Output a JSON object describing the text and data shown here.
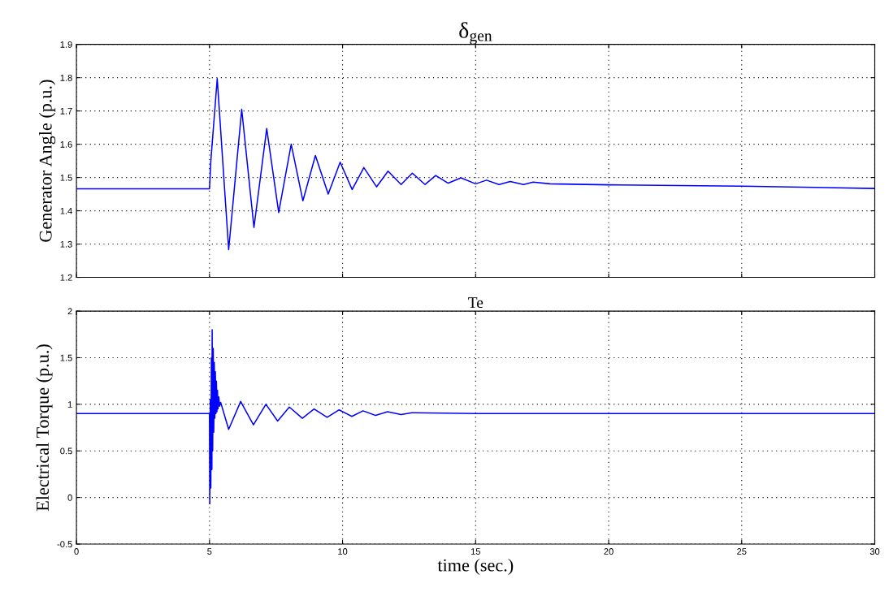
{
  "chart_data": [
    {
      "type": "line",
      "title": "δ$_{gen}$",
      "ylabel": "Generator Angle (p.u.)",
      "xlim": [
        0,
        30
      ],
      "xticks": [
        0,
        5,
        10,
        15,
        20,
        25,
        30
      ],
      "ylim": [
        1.2,
        1.9
      ],
      "yticks": [
        1.2,
        1.3,
        1.4,
        1.5,
        1.6,
        1.7,
        1.8,
        1.9
      ],
      "tick_labels": "y",
      "grid": true,
      "legend": false,
      "marker": "none",
      "line_style": "solid",
      "series": [
        {
          "color": "#0000ff",
          "x": [
            0,
            5.0,
            5.05,
            5.29,
            5.72,
            6.21,
            6.67,
            7.15,
            7.6,
            8.07,
            8.51,
            8.98,
            9.46,
            9.91,
            10.36,
            10.8,
            11.28,
            11.71,
            12.2,
            12.62,
            13.1,
            13.5,
            13.97,
            14.45,
            15.0,
            15.41,
            15.88,
            16.3,
            16.8,
            17.16,
            17.8,
            20,
            25,
            30
          ],
          "values": [
            1.466,
            1.466,
            1.55,
            1.797,
            1.283,
            1.705,
            1.35,
            1.647,
            1.395,
            1.6,
            1.43,
            1.566,
            1.45,
            1.546,
            1.464,
            1.53,
            1.472,
            1.519,
            1.479,
            1.513,
            1.479,
            1.506,
            1.483,
            1.499,
            1.481,
            1.492,
            1.479,
            1.488,
            1.479,
            1.486,
            1.481,
            1.478,
            1.474,
            1.467
          ]
        }
      ]
    },
    {
      "type": "line",
      "title": "Te",
      "xlabel": "time (sec.)",
      "ylabel": "Electrical Torque (p.u.)",
      "xlim": [
        0,
        30
      ],
      "xticks": [
        0,
        5,
        10,
        15,
        20,
        25,
        30
      ],
      "ylim": [
        -0.5,
        2
      ],
      "yticks": [
        -0.5,
        0,
        0.5,
        1,
        1.5,
        2
      ],
      "grid": true,
      "legend": false,
      "marker": "none",
      "line_style": "solid",
      "series": [
        {
          "color": "#0000ff",
          "x": [
            0,
            5.0,
            5.01,
            5.03,
            5.05,
            5.07,
            5.09,
            5.1,
            5.12,
            5.14,
            5.16,
            5.18,
            5.2,
            5.22,
            5.24,
            5.26,
            5.28,
            5.3,
            5.32,
            5.35,
            5.38,
            5.42,
            5.72,
            6.17,
            6.65,
            7.12,
            7.56,
            8.0,
            8.49,
            8.93,
            9.42,
            9.87,
            10.35,
            10.77,
            11.24,
            11.69,
            12.2,
            12.6,
            15,
            20,
            25,
            30
          ],
          "values": [
            0.9,
            0.9,
            -0.07,
            1.05,
            0.1,
            1.5,
            0.3,
            1.8,
            0.5,
            1.6,
            0.7,
            1.45,
            0.85,
            1.35,
            0.9,
            1.25,
            0.92,
            1.15,
            0.95,
            1.08,
            0.98,
            1.02,
            0.73,
            1.03,
            0.78,
            1.0,
            0.82,
            0.97,
            0.85,
            0.95,
            0.86,
            0.94,
            0.87,
            0.93,
            0.88,
            0.92,
            0.89,
            0.91,
            0.9,
            0.9,
            0.9,
            0.9
          ]
        }
      ]
    }
  ]
}
